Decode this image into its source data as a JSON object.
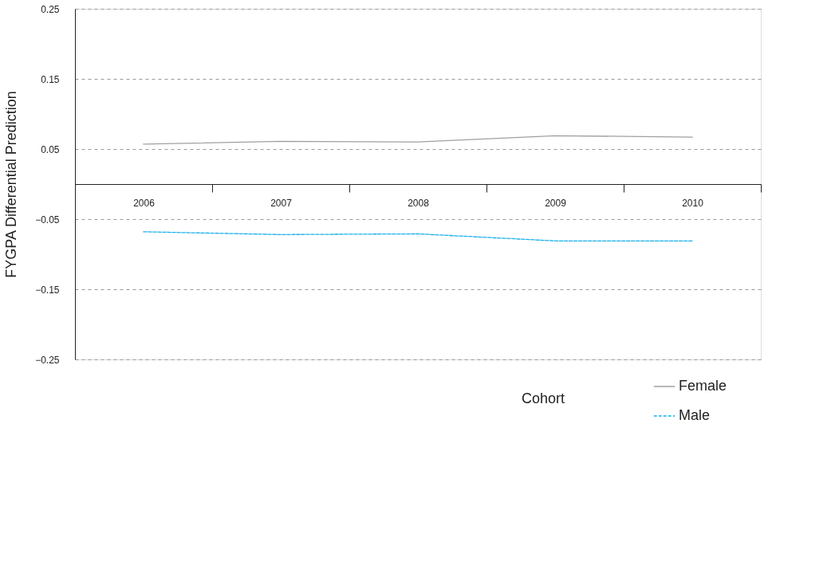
{
  "chart_data": {
    "type": "line",
    "ylabel": "FYGPA Differential Prediction",
    "legend_title": "Cohort",
    "categories": [
      "2006",
      "2007",
      "2008",
      "2009",
      "2010"
    ],
    "series": [
      {
        "name": "Female",
        "color": "#a0a0a0",
        "line_style": "solid",
        "values": [
          0.057,
          0.061,
          0.06,
          0.069,
          0.067
        ]
      },
      {
        "name": "Male",
        "color": "#1ab0e8",
        "line_style": "dashed",
        "values": [
          -0.068,
          -0.072,
          -0.071,
          -0.081,
          -0.081
        ]
      }
    ],
    "ylim": [
      -0.25,
      0.25
    ],
    "yticks": [
      0.25,
      0.15,
      0.05,
      -0.05,
      -0.15,
      -0.25
    ],
    "grid": "y",
    "legend": "bottom",
    "marker": "none"
  }
}
